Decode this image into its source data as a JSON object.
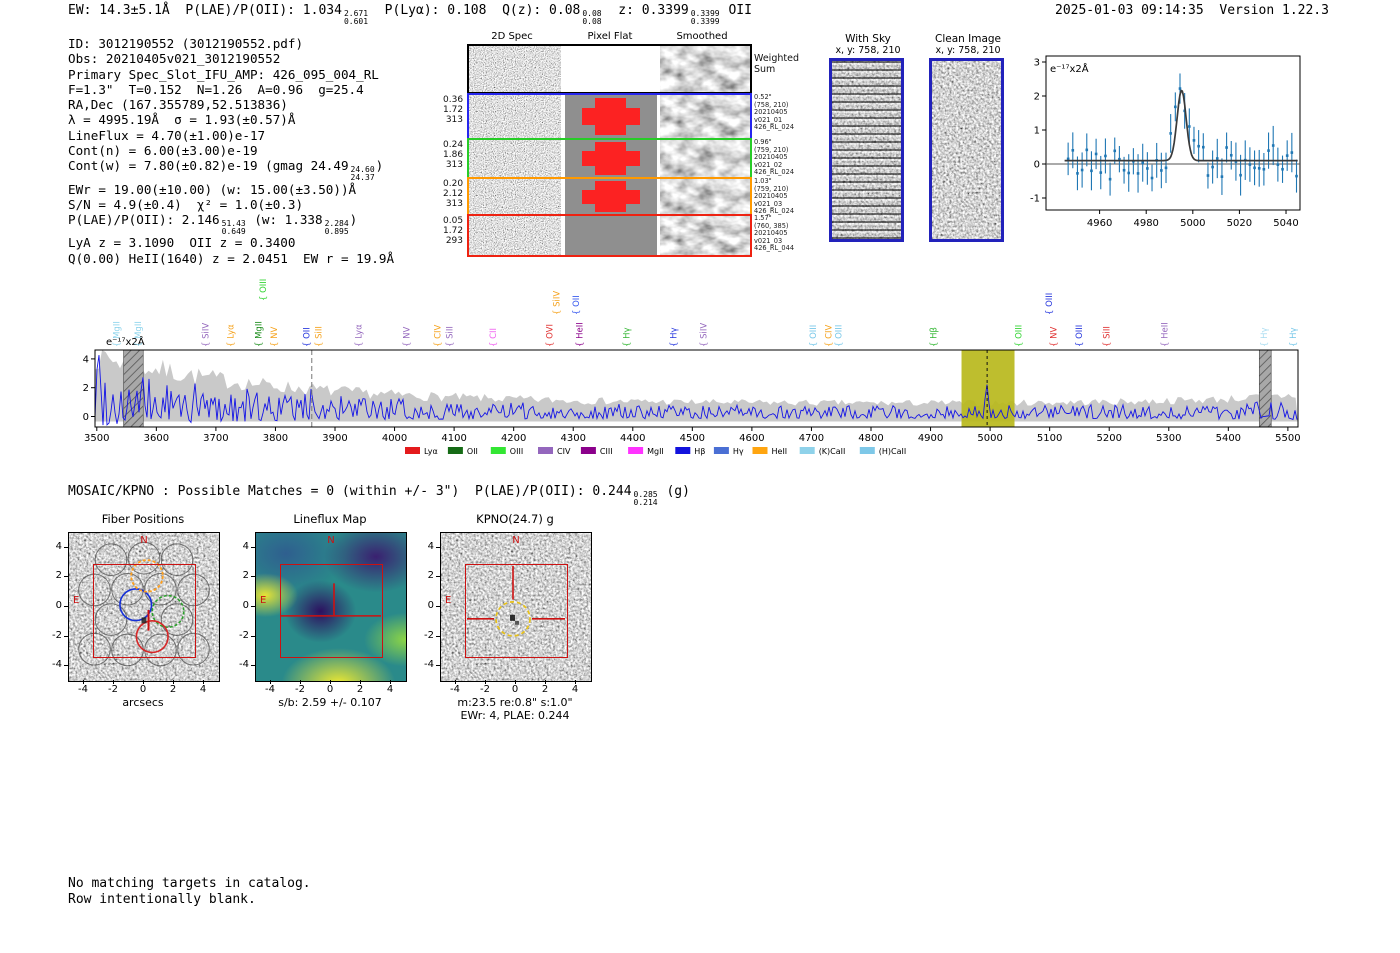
{
  "header": {
    "segments": [
      {
        "t": "EW: 14.3±5.1Å  P(LAE)/P(OII): 1.034"
      },
      {
        "up": "2.671",
        "dn": "0.601"
      },
      {
        "t": "  P(Lyα): 0.108  Q(z): 0.08"
      },
      {
        "up": "0.08",
        "dn": "0.08"
      },
      {
        "t": "  z: 0.3399"
      },
      {
        "up": "0.3399",
        "dn": "0.3399"
      },
      {
        "t": " OII"
      }
    ],
    "timestamp": "2025-01-03 09:14:35",
    "version": "Version 1.22.3"
  },
  "info": {
    "lines": [
      [
        {
          "t": "ID: 3012190552 (3012190552.pdf)"
        }
      ],
      [
        {
          "t": "Obs: 20210405v021_3012190552"
        }
      ],
      [
        {
          "t": "Primary Spec_Slot_IFU_AMP: 426_095_004_RL"
        }
      ],
      [
        {
          "t": "F=1.3\"  T=0.152  N=1.26  A=0.96  g=25.4"
        }
      ],
      [
        {
          "t": "RA,Dec (167.355789,52.513836)"
        }
      ],
      [
        {
          "t": "λ = 4995.19Å  σ = 1.93(±0.57)Å"
        }
      ],
      [
        {
          "t": "LineFlux = 4.70(±1.00)e-17"
        }
      ],
      [
        {
          "t": "Cont(n) = 6.00(±3.00)e-19"
        }
      ],
      [
        {
          "t": "Cont(w) = 7.80(±0.82)e-19 (gmag 24.49"
        },
        {
          "up": "24.60",
          "dn": "24.37"
        },
        {
          "t": ")"
        }
      ],
      [
        {
          "t": "EWr = 19.00(±10.00) (w: 15.00(±3.50))Å"
        }
      ],
      [
        {
          "t": "S/N = 4.9(±0.4)  χ² = 1.0(±0.3)"
        }
      ],
      [
        {
          "t": "P(LAE)/P(OII): 2.146"
        },
        {
          "up": "51.43",
          "dn": "0.649"
        },
        {
          "t": " (w: 1.338"
        },
        {
          "up": "2.284",
          "dn": "0.895"
        },
        {
          "t": ")"
        }
      ],
      [
        {
          "t": "LyA z = 3.1090  OII z = 0.3400"
        }
      ],
      [
        {
          "t": "Q(0.00) HeII(1640) z = 2.0451  EW r = 19.9Å"
        }
      ]
    ]
  },
  "spec2d": {
    "col_titles": [
      "2D Spec",
      "Pixel Flat",
      "Smoothed"
    ],
    "rows": [
      {
        "border": "#000000",
        "left": [],
        "right": [
          "Weighted",
          "Sum"
        ],
        "wsum": true,
        "red_blob": false,
        "flat_white": true
      },
      {
        "border": "#2626ee",
        "left": [
          "0.36",
          "1.72",
          "313"
        ],
        "right": [
          "0.52\"",
          "(758, 210)",
          "20210405",
          "v021_01",
          "426_RL_024"
        ],
        "red_blob": true
      },
      {
        "border": "#27cc27",
        "left": [
          "0.24",
          "1.86",
          "313"
        ],
        "right": [
          "0.96\"",
          "(759, 210)",
          "20210405",
          "v021_02",
          "426_RL_024"
        ],
        "red_blob": true
      },
      {
        "border": "#ff9900",
        "left": [
          "0.20",
          "2.12",
          "313"
        ],
        "right": [
          "1.03\"",
          "(759, 210)",
          "20210405",
          "v021_03",
          "426_RL_024"
        ],
        "red_blob": true
      },
      {
        "border": "#ee2211",
        "left": [
          "0.05",
          "1.72",
          "293"
        ],
        "right": [
          "1.57\"",
          "(760, 385)",
          "20210405",
          "v021_03",
          "426_RL_044"
        ],
        "red_blob": false
      }
    ]
  },
  "cutouts": {
    "with_sky": {
      "title": "With Sky",
      "subtitle": "x, y: 758, 210"
    },
    "clean": {
      "title": "Clean Image",
      "subtitle": "x, y: 758, 210"
    }
  },
  "chart_data": [
    {
      "type": "scatter",
      "name": "emission-line-fit-zoom",
      "ylabel": "e⁻¹⁷x2Å",
      "xlim": [
        4937,
        5046
      ],
      "ylim": [
        -1.35,
        3.1
      ],
      "xticks": [
        4960,
        4980,
        5000,
        5020,
        5040
      ],
      "yticks": [
        -1,
        0,
        1,
        2,
        3
      ],
      "fit": {
        "type": "gaussian",
        "center": 4995.19,
        "sigma": 1.93,
        "peak": 2.07,
        "baseline": 0.1,
        "color": "#3a3a3a"
      },
      "points": {
        "color": "#1f77b4",
        "spacing_A": 2,
        "noise_amp": 0.5,
        "errorbar": 0.5
      }
    },
    {
      "type": "line",
      "name": "full-spectrum",
      "ylabel": "e⁻¹⁷x2Å",
      "xlim": [
        3497,
        5517
      ],
      "ylim": [
        -0.75,
        4.6
      ],
      "xticks": [
        3500,
        3600,
        3700,
        3800,
        3900,
        4000,
        4100,
        4200,
        4300,
        4400,
        4500,
        4600,
        4700,
        4800,
        4900,
        5000,
        5100,
        5200,
        5300,
        5400,
        5500
      ],
      "yticks": [
        0,
        2,
        4
      ],
      "line_color": "#1414e6",
      "envelope_color": "#c9c9c9",
      "envelope": {
        "base": 0.85,
        "blue_amp": 3.3,
        "blue_scale": 300,
        "red_amp": 0.6,
        "red_scale": 200
      },
      "highlight_band": {
        "x0": 4952,
        "x1": 5041,
        "color": "#b9b91e"
      },
      "dashed_lines": [
        3861,
        4995
      ],
      "hatched_bands": [
        [
          3545,
          3578
        ],
        [
          5452,
          5472
        ]
      ],
      "main_peak": {
        "center": 4995.19,
        "amp": 2.25,
        "sigma": 2.2
      },
      "extra_peaks": [
        {
          "center": 3861,
          "amp": 1.9,
          "sigma": 1.8
        },
        {
          "center": 3503,
          "amp": 3.6,
          "sigma": 1.6
        }
      ],
      "emission_labels": [
        {
          "t": "MgII",
          "f": 0.017,
          "c": "#8fd4ec",
          "r": 0
        },
        {
          "t": "MgII",
          "f": 0.035,
          "c": "#8fd4ec",
          "r": 0
        },
        {
          "t": "SiIV",
          "f": 0.091,
          "c": "#9467bd",
          "r": 0
        },
        {
          "t": "Lyα",
          "f": 0.112,
          "c": "#f5a21c",
          "r": 0
        },
        {
          "t": "MgII",
          "f": 0.135,
          "c": "#1a8c1a",
          "r": 0
        },
        {
          "t": "OIII",
          "f": 0.139,
          "c": "#2fd42f",
          "r": 2
        },
        {
          "t": "NV",
          "f": 0.148,
          "c": "#f5a21c",
          "r": 0
        },
        {
          "t": "OII",
          "f": 0.175,
          "c": "#2233dd",
          "r": 0
        },
        {
          "t": "SiII",
          "f": 0.185,
          "c": "#f5a21c",
          "r": 0
        },
        {
          "t": "Lyα",
          "f": 0.218,
          "c": "#9467bd",
          "r": 0
        },
        {
          "t": "NV",
          "f": 0.258,
          "c": "#9467bd",
          "r": 0
        },
        {
          "t": "CIV",
          "f": 0.284,
          "c": "#f5a21c",
          "r": 0
        },
        {
          "t": "SiII",
          "f": 0.294,
          "c": "#9467bd",
          "r": 0
        },
        {
          "t": "CII",
          "f": 0.33,
          "c": "#f060f0",
          "r": 0
        },
        {
          "t": "OVI",
          "f": 0.377,
          "c": "#e03030",
          "r": 0
        },
        {
          "t": "SiIV",
          "f": 0.383,
          "c": "#f5a21c",
          "r": 1
        },
        {
          "t": "OII",
          "f": 0.399,
          "c": "#3355ee",
          "r": 1
        },
        {
          "t": "HeII",
          "f": 0.402,
          "c": "#8b008b",
          "r": 0
        },
        {
          "t": "Hγ",
          "f": 0.441,
          "c": "#2fb52f",
          "r": 0
        },
        {
          "t": "Hγ",
          "f": 0.48,
          "c": "#2233dd",
          "r": 0
        },
        {
          "t": "SiIV",
          "f": 0.505,
          "c": "#9467bd",
          "r": 0
        },
        {
          "t": "OIII",
          "f": 0.596,
          "c": "#74c6e8",
          "r": 0
        },
        {
          "t": "CIV",
          "f": 0.609,
          "c": "#f5a21c",
          "r": 0
        },
        {
          "t": "OIII",
          "f": 0.617,
          "c": "#74c6e8",
          "r": 0
        },
        {
          "t": "Hβ",
          "f": 0.696,
          "c": "#2fb52f",
          "r": 0
        },
        {
          "t": "OIII",
          "f": 0.767,
          "c": "#2fd42f",
          "r": 0
        },
        {
          "t": "OIII",
          "f": 0.792,
          "c": "#2233dd",
          "r": 1
        },
        {
          "t": "NV",
          "f": 0.796,
          "c": "#e03030",
          "r": 0
        },
        {
          "t": "OIII",
          "f": 0.817,
          "c": "#2233dd",
          "r": 0
        },
        {
          "t": "SiII",
          "f": 0.84,
          "c": "#e03030",
          "r": 0
        },
        {
          "t": "HeII",
          "f": 0.888,
          "c": "#9467bd",
          "r": 0
        },
        {
          "t": "Hγ",
          "f": 0.971,
          "c": "#a8dcf0",
          "r": 0
        },
        {
          "t": "Hγ",
          "f": 0.995,
          "c": "#74c6e8",
          "r": 0
        }
      ],
      "legend": [
        {
          "label": "Lyα",
          "color": "#e41a1c"
        },
        {
          "label": "OII",
          "color": "#166b16"
        },
        {
          "label": "OIII",
          "color": "#33e633"
        },
        {
          "label": "CIV",
          "color": "#9467bd"
        },
        {
          "label": "CIII",
          "color": "#8b008b"
        },
        {
          "label": "MgII",
          "color": "#ff33ff"
        },
        {
          "label": "Hβ",
          "color": "#1212dd"
        },
        {
          "label": "Hγ",
          "color": "#4a6fd4"
        },
        {
          "label": "HeII",
          "color": "#ffa510"
        },
        {
          "label": "(K)CaII",
          "color": "#8fd2ea"
        },
        {
          "label": "(H)CaII",
          "color": "#7ec8e8"
        }
      ]
    }
  ],
  "mosaic": {
    "segments": [
      {
        "t": "MOSAIC/KPNO : Possible Matches = 0 (within +/- 3\")  P(LAE)/P(OII): 0.244"
      },
      {
        "up": "0.285",
        "dn": "0.214"
      },
      {
        "t": " (g)"
      }
    ]
  },
  "maps": {
    "xticks": [
      -4,
      -2,
      0,
      2,
      4
    ],
    "yticks": [
      4,
      2,
      0,
      -2,
      -4
    ],
    "compass": {
      "north": "N",
      "east": "E"
    },
    "marker_color": "#cc1111",
    "panels": [
      {
        "title": "Fiber Positions",
        "xlabel": "arcsecs",
        "kind": "fiber"
      },
      {
        "title": "Lineflux Map",
        "xlabel": "s/b: 2.59 +/- 0.107",
        "kind": "lineflux"
      },
      {
        "title": "KPNO(24.7) g",
        "xlabel": "m:23.5  re:0.8\"  s:1.0\"",
        "xlabel2": "EWr: 4, PLAE: 0.244",
        "kind": "kpno"
      }
    ],
    "fibers": {
      "gray": [
        [
          -2.2,
          3.2
        ],
        [
          0.0,
          3.3
        ],
        [
          2.2,
          3.2
        ],
        [
          -3.3,
          1.15
        ],
        [
          -1.1,
          1.2
        ],
        [
          1.1,
          1.2
        ],
        [
          3.3,
          1.15
        ],
        [
          -2.2,
          -0.85
        ],
        [
          2.2,
          -0.85
        ],
        [
          -3.3,
          -2.85
        ],
        [
          -1.1,
          -2.9
        ],
        [
          1.1,
          -2.9
        ],
        [
          3.3,
          -2.85
        ]
      ],
      "blue": [
        -0.55,
        0.15
      ],
      "green": [
        1.6,
        -0.3
      ],
      "red": [
        0.55,
        -2.0
      ],
      "orange": [
        0.2,
        2.1
      ]
    }
  },
  "footer": {
    "line1": "No matching targets in catalog.",
    "line2": "Row intentionally blank."
  }
}
